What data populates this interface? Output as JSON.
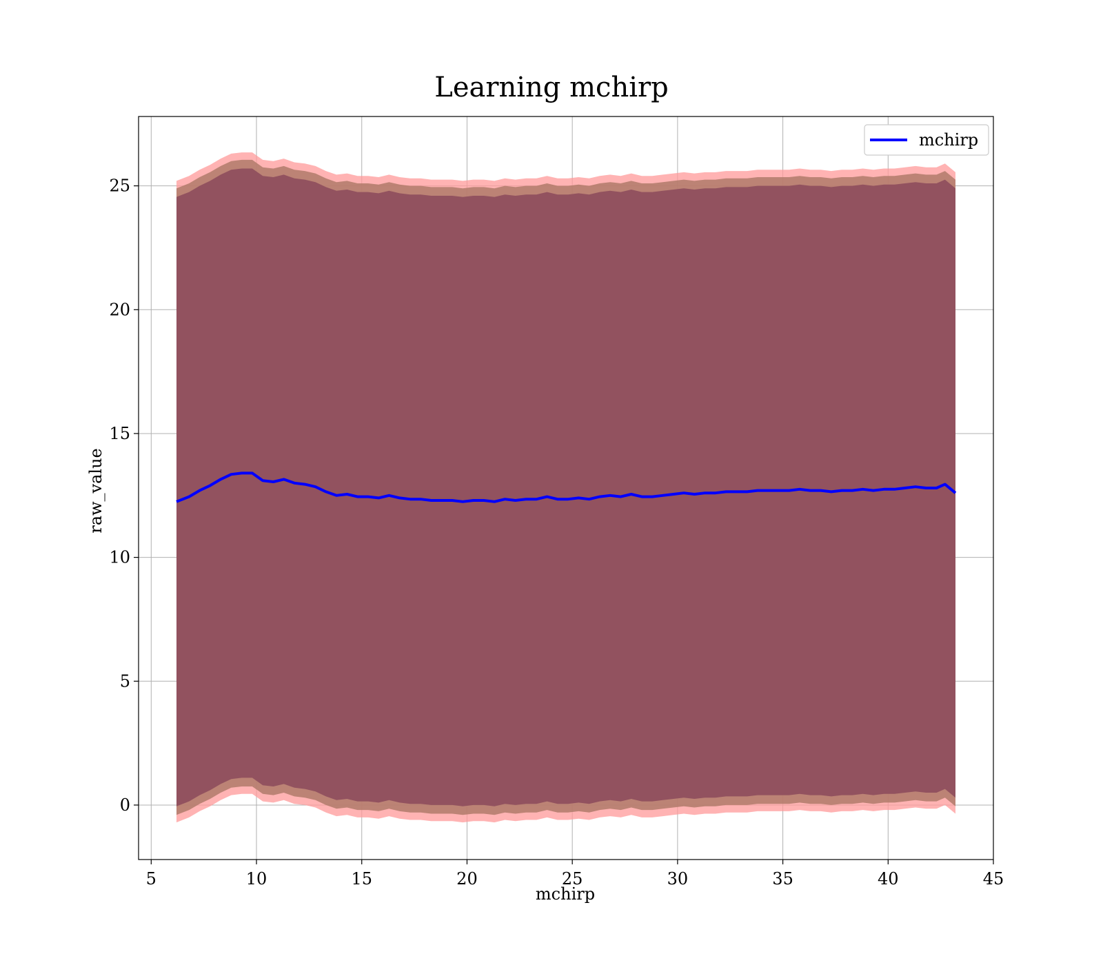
{
  "chart_data": {
    "type": "line",
    "title": "Learning mchirp",
    "xlabel": "mchirp",
    "ylabel": "raw_value",
    "xlim": [
      4.4,
      45
    ],
    "ylim": [
      -2.2,
      27.8
    ],
    "xticks": [
      5,
      10,
      15,
      20,
      25,
      30,
      35,
      40,
      45
    ],
    "yticks": [
      0,
      5,
      10,
      15,
      20,
      25
    ],
    "grid": true,
    "legend_position": "top-right",
    "colors": {
      "line": "#0000ff",
      "outer_band": "#ff9999",
      "inner_band": "#8b4a5c",
      "mid_band": "#b07a6a",
      "grid": "#b0b0b0"
    },
    "series": [
      {
        "name": "mchirp",
        "x": [
          6.2,
          6.8,
          7.3,
          7.8,
          8.3,
          8.8,
          9.3,
          9.8,
          10.3,
          10.8,
          11.3,
          11.8,
          12.3,
          12.8,
          13.3,
          13.8,
          14.3,
          14.8,
          15.3,
          15.8,
          16.3,
          16.8,
          17.3,
          17.8,
          18.3,
          18.8,
          19.3,
          19.8,
          20.3,
          20.8,
          21.3,
          21.8,
          22.3,
          22.8,
          23.3,
          23.8,
          24.3,
          24.8,
          25.3,
          25.8,
          26.3,
          26.8,
          27.3,
          27.8,
          28.3,
          28.8,
          29.3,
          29.8,
          30.3,
          30.8,
          31.3,
          31.8,
          32.3,
          32.8,
          33.3,
          33.8,
          34.3,
          34.8,
          35.3,
          35.8,
          36.3,
          36.8,
          37.3,
          37.8,
          38.3,
          38.8,
          39.3,
          39.8,
          40.3,
          40.8,
          41.3,
          41.8,
          42.3,
          42.7,
          43.2
        ],
        "y": [
          12.25,
          12.45,
          12.7,
          12.9,
          13.15,
          13.35,
          13.4,
          13.4,
          13.1,
          13.05,
          13.15,
          13.0,
          12.95,
          12.85,
          12.65,
          12.5,
          12.55,
          12.45,
          12.45,
          12.4,
          12.5,
          12.4,
          12.35,
          12.35,
          12.3,
          12.3,
          12.3,
          12.25,
          12.3,
          12.3,
          12.25,
          12.35,
          12.3,
          12.35,
          12.35,
          12.45,
          12.35,
          12.35,
          12.4,
          12.35,
          12.45,
          12.5,
          12.45,
          12.55,
          12.45,
          12.45,
          12.5,
          12.55,
          12.6,
          12.55,
          12.6,
          12.6,
          12.65,
          12.65,
          12.65,
          12.7,
          12.7,
          12.7,
          12.7,
          12.75,
          12.7,
          12.7,
          12.65,
          12.7,
          12.7,
          12.75,
          12.7,
          12.75,
          12.75,
          12.8,
          12.85,
          12.8,
          12.8,
          12.95,
          12.6
        ],
        "band_outer_upper_offset": 12.95,
        "band_outer_lower_offset": 12.95,
        "band_inner_upper_offset": 12.3,
        "band_inner_lower_offset": 12.3,
        "band_mid_width": 0.35
      }
    ]
  }
}
